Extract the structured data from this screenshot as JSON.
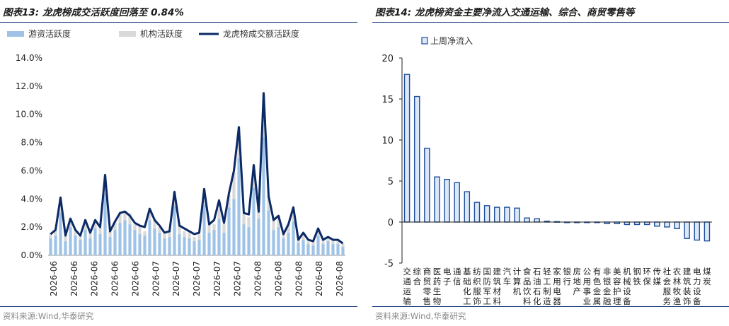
{
  "colors": {
    "navy": "#0b2a66",
    "light_blue": "#9fc3e6",
    "light_gray": "#d9d9d9",
    "rule": "#1a3d7c",
    "bar_edge": "#1f4e9c",
    "bar_fill": "#dbe8f7"
  },
  "left": {
    "title": "图表13:  龙虎榜成交活跃度回落至 0.84%",
    "source": "资料来源:Wind,华泰研究",
    "chart_data": {
      "type": "line",
      "legend": [
        "游资活跃度",
        "机构活跃度",
        "龙虎榜成交额活跃度"
      ],
      "legend_position": "top-left",
      "grid": false,
      "ylim": [
        0,
        14
      ],
      "yticks": [
        "0.0%",
        "2.0%",
        "4.0%",
        "6.0%",
        "8.0%",
        "10.0%",
        "12.0%",
        "14.0%"
      ],
      "x_tick_labels": [
        "2026-06",
        "2026-06",
        "2026-06",
        "2026-06",
        "2026-06",
        "2026-07",
        "2026-07",
        "2026-07",
        "2026-07",
        "2026-07",
        "2026-08",
        "2026-08",
        "2026-08",
        "2026-08",
        "2026-08"
      ],
      "series": [
        {
          "name": "游资活跃度",
          "values": [
            1.2,
            1.4,
            3.0,
            1.0,
            2.0,
            1.4,
            1.1,
            1.8,
            1.2,
            1.9,
            1.5,
            4.4,
            1.3,
            1.8,
            2.3,
            2.5,
            2.2,
            1.8,
            1.5,
            1.4,
            2.5,
            1.9,
            1.6,
            1.2,
            1.3,
            3.5,
            1.5,
            1.3,
            1.2,
            1.0,
            1.1,
            3.6,
            1.6,
            1.8,
            2.6,
            1.6,
            3.4,
            4.0,
            6.9,
            2.2,
            2.0,
            4.8,
            2.6,
            8.4,
            3.2,
            1.8,
            2.0,
            1.2,
            1.6,
            2.4,
            0.9,
            1.1,
            0.8,
            0.7,
            1.4,
            0.8,
            1.0,
            0.8,
            0.8,
            0.6
          ]
        },
        {
          "name": "机构活跃度",
          "values": [
            0.4,
            0.4,
            1.1,
            0.4,
            0.6,
            0.4,
            0.3,
            0.7,
            0.4,
            0.6,
            0.5,
            1.3,
            0.4,
            0.6,
            0.7,
            0.5,
            0.8,
            0.4,
            0.6,
            0.3,
            0.8,
            0.7,
            0.4,
            0.3,
            0.4,
            1.0,
            0.6,
            0.4,
            0.4,
            0.3,
            0.4,
            1.1,
            0.6,
            0.4,
            0.7,
            0.6,
            0.9,
            1.9,
            2.2,
            0.8,
            0.7,
            1.6,
            0.8,
            3.1,
            1.0,
            0.7,
            0.8,
            0.3,
            0.6,
            0.7,
            0.2,
            0.5,
            0.2,
            0.3,
            0.5,
            0.3,
            0.3,
            0.3,
            0.3,
            0.2
          ]
        },
        {
          "name": "龙虎榜成交额活跃度",
          "values": [
            1.5,
            1.8,
            4.1,
            1.4,
            2.6,
            1.8,
            1.4,
            2.5,
            1.6,
            2.5,
            2.0,
            5.7,
            1.7,
            2.4,
            3.0,
            3.1,
            2.8,
            2.3,
            2.1,
            2.0,
            3.3,
            2.5,
            2.1,
            1.6,
            1.7,
            4.5,
            2.1,
            1.9,
            1.7,
            1.5,
            1.6,
            4.7,
            2.2,
            2.5,
            3.9,
            2.3,
            4.4,
            6.0,
            9.1,
            3.0,
            2.9,
            6.4,
            3.1,
            11.5,
            4.2,
            2.5,
            2.8,
            1.5,
            2.2,
            3.4,
            1.1,
            1.6,
            1.1,
            1.0,
            1.9,
            1.1,
            1.3,
            1.1,
            1.1,
            0.84
          ]
        }
      ]
    }
  },
  "right": {
    "title": "图表14:  龙虎榜资金主要净流入交通运输、综合、商贸零售等",
    "source": "资料来源:Wind,华泰研究",
    "chart_data": {
      "type": "bar",
      "legend": [
        "上周净流入"
      ],
      "legend_position": "top-left",
      "grid": false,
      "ylim": [
        -5,
        20
      ],
      "yticks": [
        "-5",
        "0",
        "5",
        "10",
        "15",
        "20"
      ],
      "categories": [
        "交通运输",
        "综合",
        "商贸零售",
        "医药生物",
        "电子",
        "通信",
        "基础化工",
        "纺织服饰",
        "国防军工",
        "建筑材料",
        "汽车",
        "计算机",
        "食品饮料",
        "石油石化",
        "轻工制造",
        "家用电器",
        "银行",
        "房地产",
        "公用事业",
        "有色金属",
        "非银金融",
        "美容护理",
        "机械设备",
        "钢铁",
        "环保",
        "传媒",
        "社会服务",
        "农林牧渔",
        "建筑装饰",
        "电力设备",
        "煤炭"
      ],
      "values": [
        18.0,
        15.3,
        9.0,
        5.5,
        5.2,
        4.8,
        3.7,
        2.4,
        2.0,
        1.8,
        1.8,
        1.7,
        0.5,
        0.4,
        0.1,
        0.05,
        0.0,
        0.0,
        0.0,
        0.0,
        -0.2,
        -0.2,
        -0.3,
        -0.3,
        -0.3,
        -0.5,
        -0.6,
        -0.8,
        -2.0,
        -2.2,
        -2.3
      ]
    }
  }
}
